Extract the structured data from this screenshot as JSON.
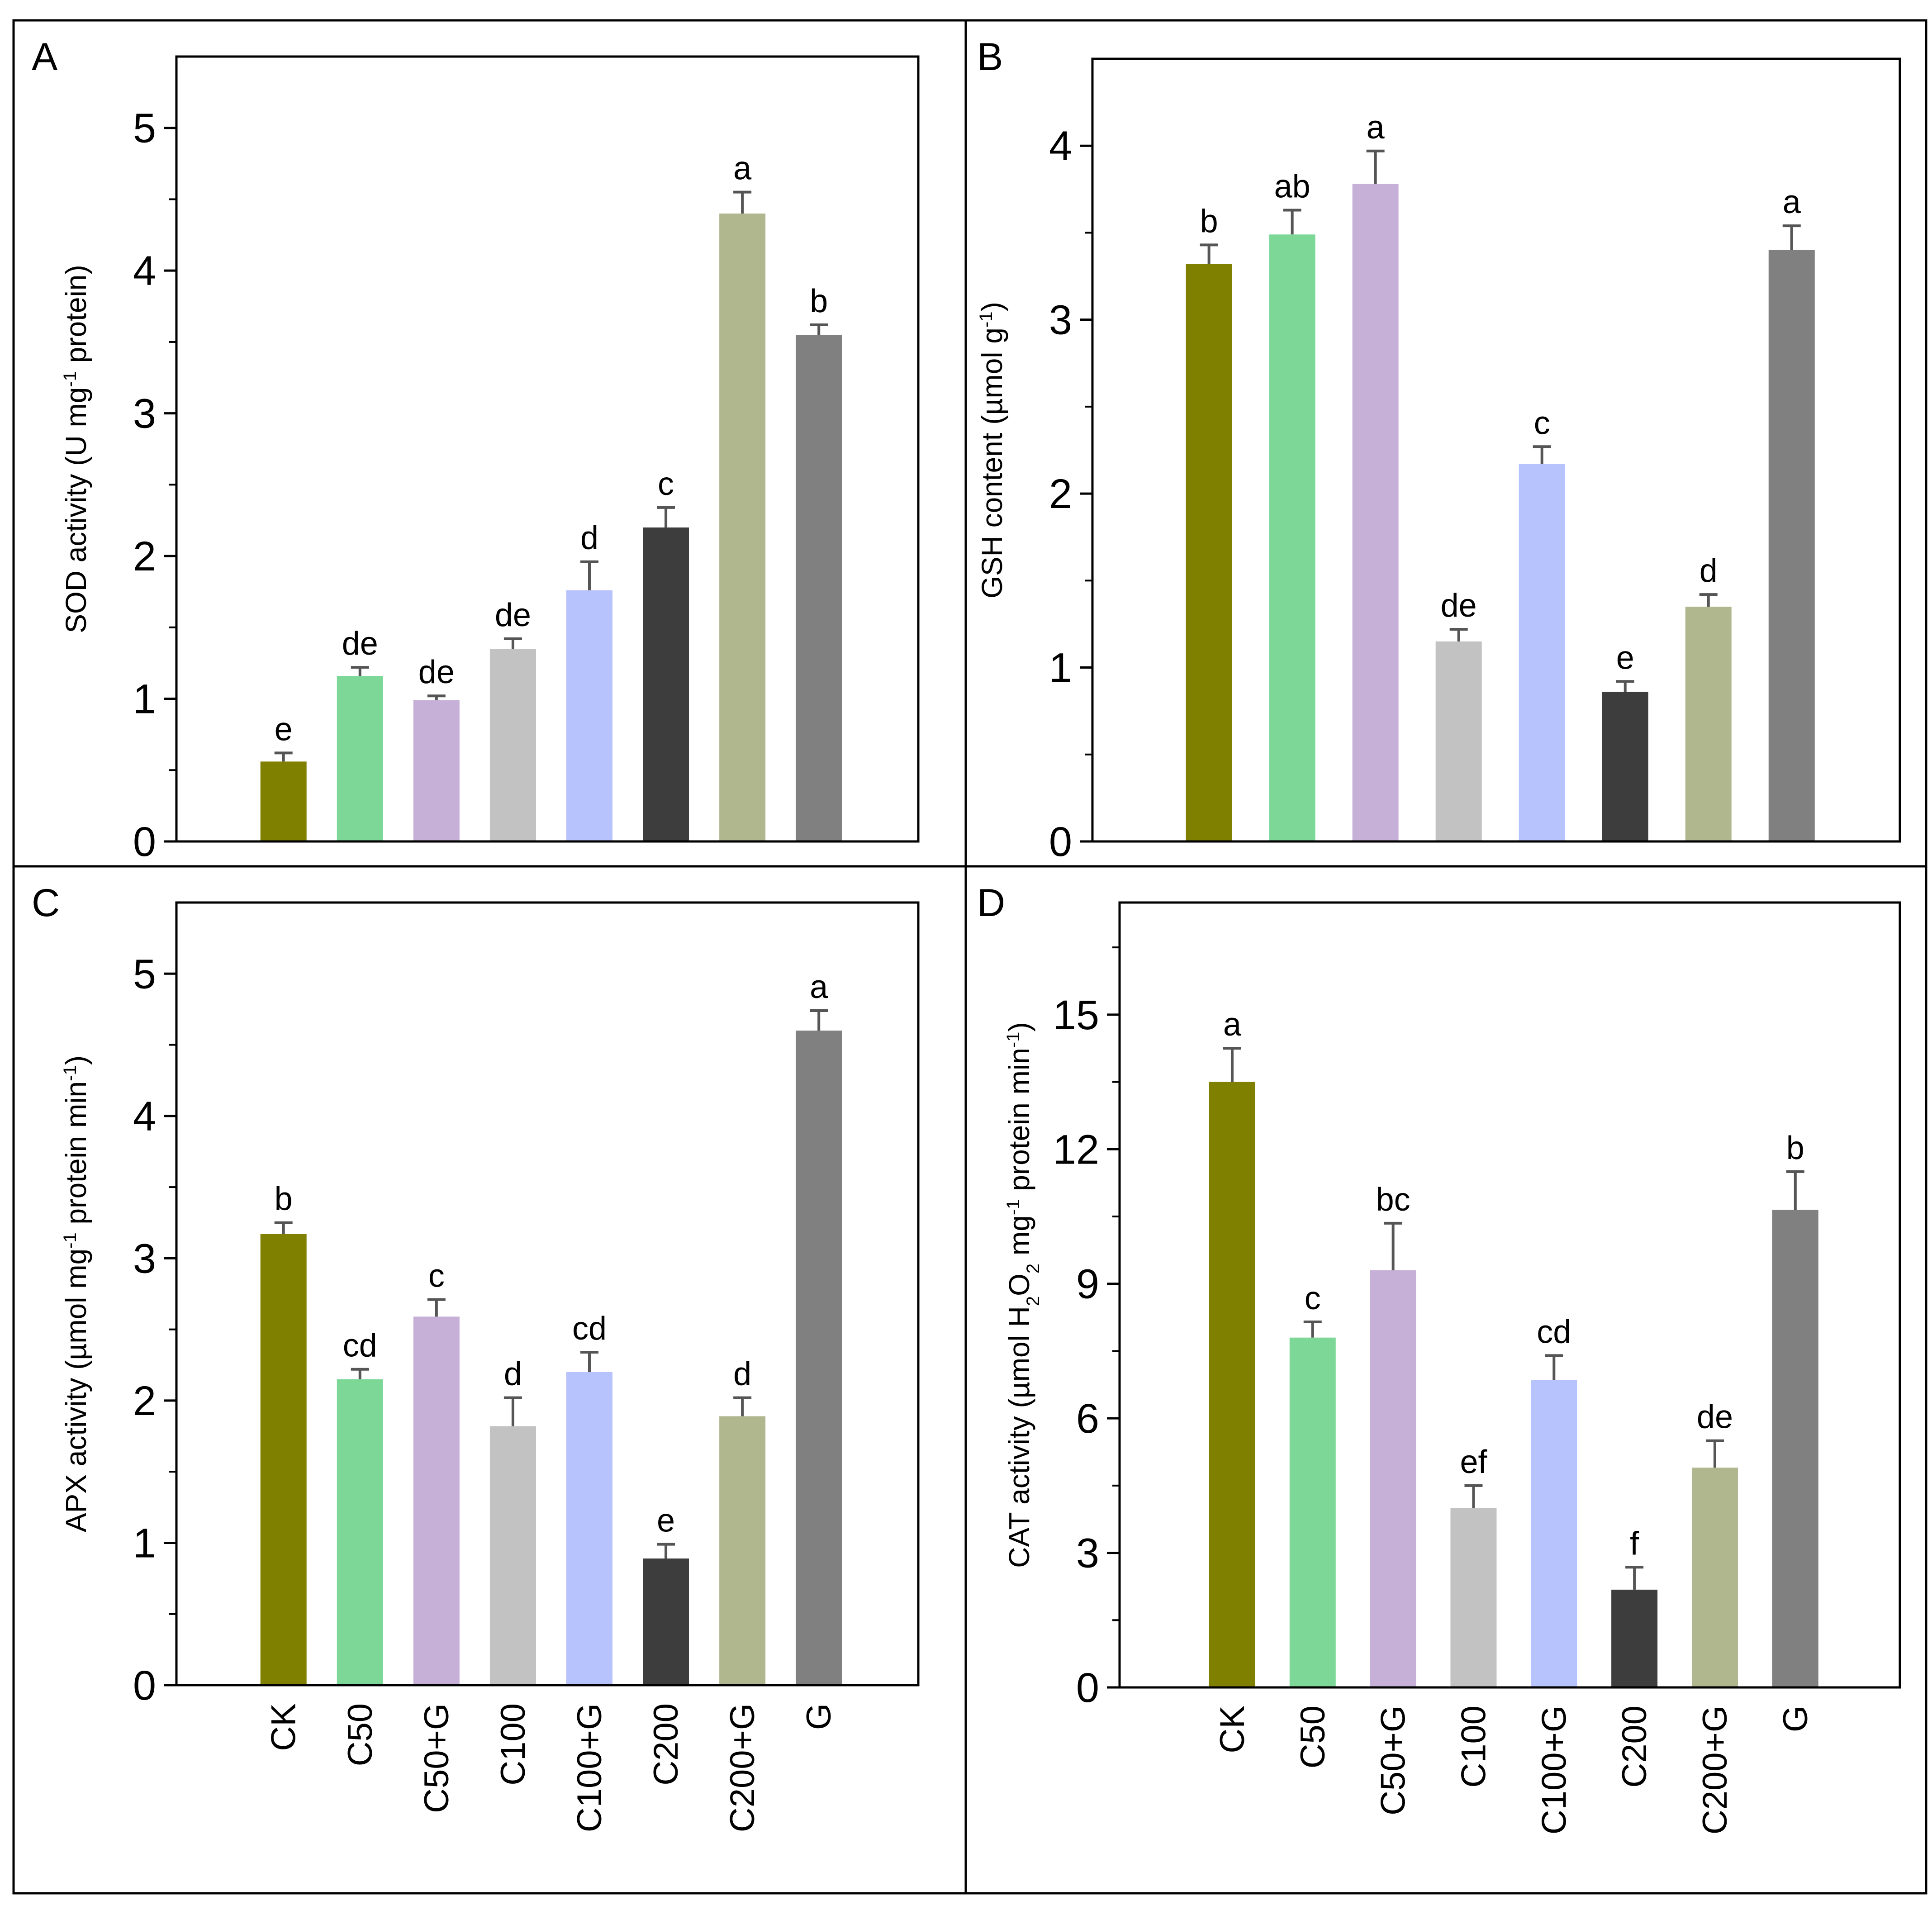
{
  "colors": {
    "CK": "#808000",
    "C50": "#7dd898",
    "C50+G": "#c7b0d7",
    "C100": "#c2c2c2",
    "C100+G": "#b6c3fd",
    "C200": "#3d3d3d",
    "C200+G": "#b0b78f",
    "G": "#808080"
  },
  "chart_data": [
    {
      "panel": "A",
      "type": "bar",
      "categories": [
        "CK",
        "C50",
        "C50+G",
        "C100",
        "C100+G",
        "C200",
        "C200+G",
        "G"
      ],
      "values": [
        0.56,
        1.16,
        0.99,
        1.35,
        1.76,
        2.2,
        4.4,
        3.55
      ],
      "errors": [
        0.06,
        0.06,
        0.03,
        0.07,
        0.2,
        0.14,
        0.15,
        0.07
      ],
      "letters": [
        "e",
        "de",
        "de",
        "de",
        "d",
        "c",
        "a",
        "b"
      ],
      "ylabel": [
        {
          "t": "SOD activity (U mg"
        },
        {
          "t": "-1",
          "sup": true
        },
        {
          "t": " protein)"
        }
      ],
      "ylim": [
        0,
        5.5
      ],
      "yticks": [
        0,
        1,
        2,
        3,
        4,
        5
      ],
      "yticks_minor": [
        0.5,
        1.5,
        2.5,
        3.5,
        4.5
      ],
      "show_categories": false
    },
    {
      "panel": "B",
      "type": "bar",
      "categories": [
        "CK",
        "C50",
        "C50+G",
        "C100",
        "C100+G",
        "C200",
        "C200+G",
        "G"
      ],
      "values": [
        3.32,
        3.49,
        3.78,
        1.15,
        2.17,
        0.86,
        1.35,
        3.4
      ],
      "errors": [
        0.11,
        0.14,
        0.19,
        0.07,
        0.1,
        0.06,
        0.07,
        0.14
      ],
      "letters": [
        "b",
        "ab",
        "a",
        "de",
        "c",
        "e",
        "d",
        "a"
      ],
      "ylabel": [
        {
          "t": "GSH content (µmol g"
        },
        {
          "t": "-1",
          "sup": true
        },
        {
          "t": ")"
        }
      ],
      "ylim": [
        0,
        4.5
      ],
      "yticks": [
        0,
        1,
        2,
        3,
        4
      ],
      "yticks_minor": [
        0.5,
        1.5,
        2.5,
        3.5
      ],
      "show_categories": false
    },
    {
      "panel": "C",
      "type": "bar",
      "categories": [
        "CK",
        "C50",
        "C50+G",
        "C100",
        "C100+G",
        "C200",
        "C200+G",
        "G"
      ],
      "values": [
        3.17,
        2.15,
        2.59,
        1.82,
        2.2,
        0.89,
        1.89,
        4.6
      ],
      "errors": [
        0.08,
        0.07,
        0.12,
        0.2,
        0.14,
        0.1,
        0.13,
        0.14
      ],
      "letters": [
        "b",
        "cd",
        "c",
        "d",
        "cd",
        "e",
        "d",
        "a"
      ],
      "ylabel": [
        {
          "t": "APX activity (µmol mg"
        },
        {
          "t": "-1",
          "sup": true
        },
        {
          "t": " protein min"
        },
        {
          "t": "-1",
          "sup": true
        },
        {
          "t": ")"
        }
      ],
      "ylim": [
        0,
        5.5
      ],
      "yticks": [
        0,
        1,
        2,
        3,
        4,
        5
      ],
      "yticks_minor": [
        0.5,
        1.5,
        2.5,
        3.5,
        4.5
      ],
      "show_categories": true
    },
    {
      "panel": "D",
      "type": "bar",
      "categories": [
        "CK",
        "C50",
        "C50+G",
        "C100",
        "C100+G",
        "C200",
        "C200+G",
        "G"
      ],
      "values": [
        13.5,
        7.8,
        9.3,
        4.0,
        6.85,
        2.18,
        4.9,
        10.65
      ],
      "errors": [
        0.75,
        0.35,
        1.05,
        0.5,
        0.55,
        0.5,
        0.6,
        0.85
      ],
      "letters": [
        "a",
        "c",
        "bc",
        "ef",
        "cd",
        "f",
        "de",
        "b"
      ],
      "ylabel": [
        {
          "t": "CAT activity (µmol H"
        },
        {
          "t": "2",
          "sub": true
        },
        {
          "t": "O"
        },
        {
          "t": "2",
          "sub": true
        },
        {
          "t": " mg"
        },
        {
          "t": "-1",
          "sup": true
        },
        {
          "t": " protein min"
        },
        {
          "t": "-1",
          "sup": true
        },
        {
          "t": ")"
        }
      ],
      "ylim": [
        0,
        17.5
      ],
      "yticks": [
        0,
        3,
        6,
        9,
        12,
        15
      ],
      "yticks_minor": [
        1.5,
        4.5,
        7.5,
        10.5,
        13.5,
        16.5
      ],
      "show_categories": true
    }
  ]
}
